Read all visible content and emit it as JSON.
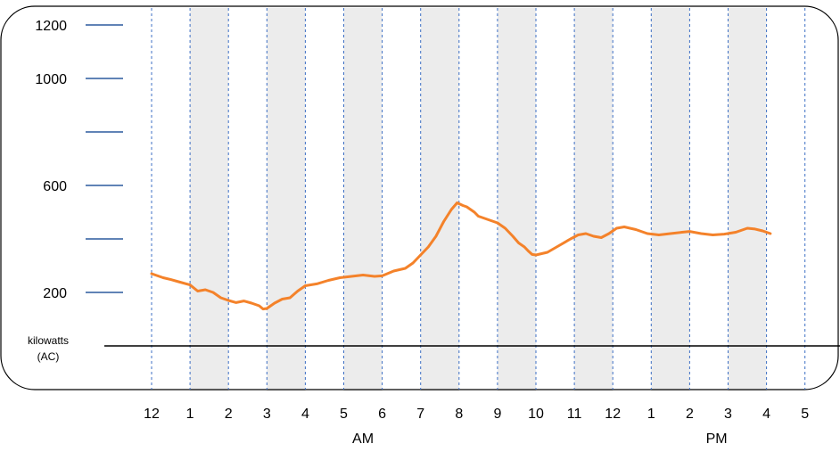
{
  "chart_data": {
    "type": "line",
    "title": "",
    "xlabel": "",
    "ylabel": "",
    "y_unit": [
      "kilowatts",
      "(AC)"
    ],
    "ylim": [
      0,
      1200
    ],
    "y_ticks": [
      200,
      400,
      600,
      800,
      1000,
      1200
    ],
    "y_tick_labels": [
      "200",
      "",
      "600",
      "",
      "1000",
      "1200"
    ],
    "x_ticks": [
      "12",
      "1",
      "2",
      "3",
      "4",
      "5",
      "6",
      "7",
      "8",
      "9",
      "10",
      "11",
      "12",
      "1",
      "2",
      "3",
      "4",
      "5"
    ],
    "periods": [
      {
        "label": "AM",
        "at": 5.5
      },
      {
        "label": "PM",
        "at": 14.7
      }
    ],
    "shaded_bands": [
      [
        1,
        2
      ],
      [
        3,
        4
      ],
      [
        5,
        6
      ],
      [
        7,
        8
      ],
      [
        9,
        10
      ],
      [
        11,
        12
      ],
      [
        13,
        14
      ],
      [
        15,
        16
      ]
    ],
    "grid": "vertical dashed",
    "colors": {
      "line": "#f4822a",
      "tick": "#2b5a9e",
      "grid": "#3d6fc4",
      "band": "#ececec",
      "baseline": "#000000"
    },
    "series": [
      {
        "x": [
          0,
          0.3,
          0.5,
          0.7,
          1.0,
          1.2,
          1.4,
          1.6,
          1.8,
          2.0,
          2.2,
          2.4,
          2.6,
          2.8,
          2.9,
          3.0,
          3.2,
          3.4,
          3.6,
          3.8,
          4.0,
          4.3,
          4.6,
          4.9,
          5.2,
          5.5,
          5.8,
          6.0,
          6.3,
          6.6,
          6.8,
          7.0,
          7.2,
          7.4,
          7.6,
          7.8,
          7.95,
          8.1,
          8.2,
          8.3,
          8.4,
          8.5,
          8.7,
          9.0,
          9.2,
          9.4,
          9.55,
          9.7,
          9.8,
          9.9,
          10.0,
          10.3,
          10.6,
          10.9,
          11.1,
          11.3,
          11.5,
          11.7,
          11.9,
          12.1,
          12.3,
          12.6,
          12.9,
          13.2,
          13.5,
          13.8,
          14.0,
          14.3,
          14.6,
          14.9,
          15.2,
          15.5,
          15.7,
          15.9,
          16.1
        ],
        "y": [
          270,
          255,
          248,
          240,
          228,
          205,
          210,
          200,
          180,
          170,
          162,
          168,
          160,
          150,
          138,
          140,
          160,
          175,
          180,
          205,
          225,
          232,
          245,
          255,
          260,
          265,
          260,
          262,
          280,
          290,
          310,
          340,
          370,
          410,
          465,
          510,
          535,
          525,
          520,
          510,
          500,
          485,
          475,
          460,
          440,
          410,
          385,
          370,
          355,
          342,
          340,
          350,
          375,
          400,
          415,
          420,
          410,
          405,
          420,
          440,
          445,
          435,
          420,
          415,
          420,
          425,
          428,
          420,
          415,
          418,
          425,
          440,
          437,
          430,
          420
        ]
      }
    ]
  }
}
